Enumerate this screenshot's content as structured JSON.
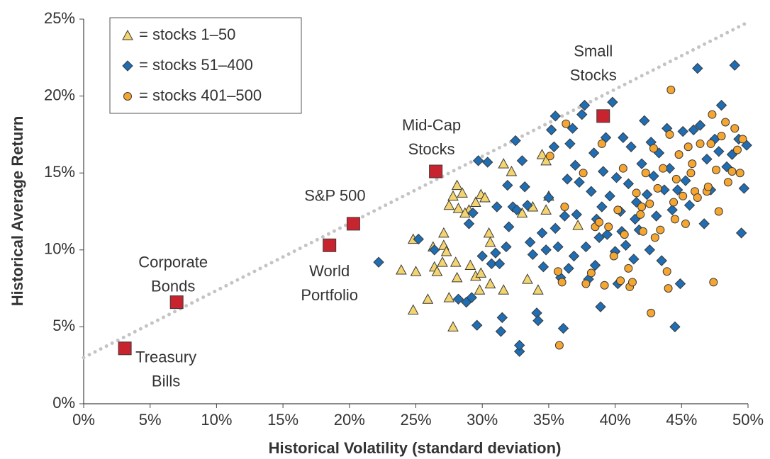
{
  "chart_data": {
    "type": "scatter",
    "x_label": "Historical Volatility (standard deviation)",
    "y_label": "Historical Average Return",
    "xlim": [
      0,
      50
    ],
    "ylim": [
      0,
      25
    ],
    "xticks": [
      {
        "value": 0,
        "label": "0%"
      },
      {
        "value": 5,
        "label": "5%"
      },
      {
        "value": 10,
        "label": "10%"
      },
      {
        "value": 15,
        "label": "15%"
      },
      {
        "value": 20,
        "label": "20%"
      },
      {
        "value": 25,
        "label": "25%"
      },
      {
        "value": 30,
        "label": "30%"
      },
      {
        "value": 35,
        "label": "35%"
      },
      {
        "value": 40,
        "label": "40%"
      },
      {
        "value": 45,
        "label": "45%"
      },
      {
        "value": 50,
        "label": "50%"
      }
    ],
    "yticks": [
      {
        "value": 0,
        "label": "0%"
      },
      {
        "value": 5,
        "label": "5%"
      },
      {
        "value": 10,
        "label": "10%"
      },
      {
        "value": 15,
        "label": "15%"
      },
      {
        "value": 20,
        "label": "20%"
      },
      {
        "value": 25,
        "label": "25%"
      }
    ],
    "legend": "upper left",
    "series": [
      {
        "name": "= stocks 1–50",
        "marker": "triangle",
        "color": "#f3d46e",
        "x": [
          24.8,
          25,
          23.9,
          24.8,
          25.9,
          26.4,
          26.3,
          26.6,
          27.1,
          27.1,
          27.3,
          27.5,
          27.8,
          27.5,
          27.8,
          28.1,
          28.2,
          28.5,
          28.0,
          28.1,
          29.0,
          29.1,
          29.5,
          29.9,
          30.2,
          30.5,
          30.6,
          29.5,
          29.9,
          29.8,
          30.6,
          31.6,
          31.6,
          32.2,
          33.0,
          33.8,
          33.4,
          34.2,
          34.5,
          34.8,
          35.0,
          34.8,
          37.2,
          28.7,
          27.0
        ],
        "values": [
          10.7,
          8.6,
          8.7,
          6.1,
          6.8,
          8.9,
          10.2,
          8.6,
          10.3,
          11.1,
          9.9,
          6.9,
          5.0,
          12.9,
          13.5,
          14.2,
          12.7,
          13.7,
          9.2,
          8.2,
          12.6,
          9.0,
          13.1,
          13.6,
          13.4,
          11.1,
          10.5,
          8.3,
          8.5,
          7.4,
          7.8,
          7.4,
          15.6,
          15.1,
          12.4,
          12.8,
          8.1,
          7.4,
          16.2,
          15.8,
          13.5,
          12.6,
          11.6,
          12.4,
          9.2
        ]
      },
      {
        "name": "= stocks 51–400",
        "marker": "diamond",
        "color": "#1f6db3",
        "x": [
          22.2,
          25.2,
          26.4,
          28.2,
          28.8,
          29.2,
          29.0,
          29.3,
          29.6,
          29.7,
          30.4,
          30.0,
          30.7,
          31.1,
          31.0,
          31.3,
          31.5,
          31.4,
          31.8,
          31.9,
          32.3,
          32.6,
          32.8,
          32.8,
          32.5,
          33.2,
          33.4,
          33.6,
          33.8,
          34.1,
          34.2,
          34.5,
          34.8,
          35.0,
          35.2,
          35.4,
          35.5,
          35.5,
          35.7,
          35.9,
          36.1,
          36.2,
          36.4,
          36.6,
          36.8,
          36.9,
          37.1,
          37.3,
          37.5,
          37.7,
          37.8,
          38.0,
          38.2,
          38.4,
          38.6,
          38.8,
          38.9,
          39.1,
          39.3,
          39.4,
          39.6,
          39.8,
          40.0,
          40.1,
          40.2,
          40.4,
          40.6,
          40.8,
          41.0,
          41.2,
          41.4,
          41.6,
          41.8,
          42.0,
          42.2,
          42.4,
          42.6,
          42.7,
          42.9,
          43.1,
          43.3,
          43.5,
          43.7,
          43.9,
          44.1,
          44.3,
          44.5,
          44.7,
          44.9,
          45.1,
          45.3,
          45.6,
          45.9,
          46.2,
          46.4,
          46.7,
          46.9,
          47.2,
          47.5,
          47.8,
          48.0,
          48.4,
          48.8,
          49.0,
          49.3,
          49.5,
          49.7,
          49.9,
          34.6,
          36.5,
          38.5,
          33.0,
          32.0,
          37.0,
          39.0,
          41.5,
          40.5
        ],
        "values": [
          9.2,
          10.7,
          10.0,
          6.8,
          6.6,
          6.9,
          11.7,
          12.4,
          5.1,
          15.8,
          15.7,
          9.6,
          9.1,
          12.8,
          9.8,
          9.1,
          5.6,
          4.7,
          10.2,
          14.2,
          12.8,
          12.6,
          3.4,
          3.8,
          17.1,
          14.1,
          12.9,
          10.5,
          9.7,
          5.9,
          5.4,
          11.1,
          10.0,
          13.4,
          17.8,
          16.7,
          18.7,
          11.4,
          10.2,
          8.2,
          4.9,
          12.2,
          14.6,
          16.9,
          17.9,
          9.6,
          12.3,
          14.4,
          18.8,
          19.4,
          10.2,
          8.1,
          13.8,
          16.3,
          12.0,
          10.8,
          6.3,
          15.1,
          17.3,
          11.0,
          13.5,
          19.6,
          9.9,
          14.7,
          7.8,
          12.5,
          17.3,
          10.3,
          14.3,
          16.7,
          9.4,
          13.1,
          11.3,
          15.6,
          18.4,
          13.6,
          10.0,
          17.0,
          14.8,
          12.2,
          16.3,
          9.3,
          13.9,
          17.9,
          15.3,
          12.6,
          5.0,
          13.9,
          7.8,
          17.7,
          14.5,
          12.9,
          17.8,
          21.8,
          18.1,
          11.7,
          15.9,
          13.9,
          17.2,
          16.4,
          19.4,
          15.4,
          16.2,
          22.0,
          17.2,
          11.1,
          14.0,
          16.8,
          8.9,
          8.8,
          9.0,
          15.8,
          11.5,
          15.5,
          12.8,
          12.0,
          11.2
        ]
      },
      {
        "name": "= stocks 401–500",
        "marker": "circle",
        "color": "#f5a631",
        "x": [
          35.8,
          35.7,
          36.0,
          36.3,
          35.1,
          36.2,
          37.8,
          38.2,
          38.5,
          38.8,
          39.2,
          39.5,
          39.9,
          40.2,
          40.4,
          40.7,
          41.0,
          41.1,
          41.3,
          41.6,
          41.9,
          42.1,
          42.3,
          42.6,
          42.7,
          42.9,
          43.2,
          43.4,
          43.6,
          43.9,
          44.0,
          44.1,
          44.2,
          44.4,
          44.6,
          44.8,
          45.1,
          45.3,
          45.5,
          45.7,
          46.0,
          46.2,
          46.4,
          46.9,
          47.0,
          47.2,
          47.3,
          47.4,
          47.6,
          47.8,
          48.0,
          48.3,
          48.5,
          48.8,
          49.0,
          49.2,
          49.4,
          49.6,
          37.6,
          39.0,
          40.6,
          42.0,
          43.0,
          44.5,
          45.8
        ],
        "values": [
          3.8,
          8.6,
          7.9,
          18.2,
          16.1,
          12.8,
          7.8,
          8.5,
          11.5,
          11.8,
          7.7,
          11.5,
          9.6,
          12.6,
          8.0,
          11.0,
          8.8,
          7.6,
          7.9,
          13.7,
          12.3,
          11.2,
          15.0,
          13.0,
          5.9,
          16.6,
          14.0,
          11.3,
          15.3,
          8.6,
          7.5,
          17.5,
          20.4,
          13.1,
          14.6,
          16.2,
          13.5,
          11.7,
          16.7,
          15.0,
          13.8,
          13.4,
          16.9,
          13.8,
          14.1,
          16.9,
          18.8,
          7.9,
          15.2,
          12.5,
          17.4,
          18.3,
          14.4,
          15.1,
          17.9,
          16.5,
          15.0,
          17.2,
          15.0,
          16.9,
          15.3,
          12.8,
          10.8,
          12.0,
          15.6
        ]
      }
    ],
    "reference_line": {
      "x": [
        0,
        50
      ],
      "y": [
        3.0,
        24.8
      ]
    },
    "points": [
      {
        "label_lines": [
          "Treasury",
          "Bills"
        ],
        "x": 3.1,
        "y": 3.6
      },
      {
        "label_lines": [
          "Corporate",
          "Bonds"
        ],
        "x": 7.0,
        "y": 6.6
      },
      {
        "label_lines": [
          "World",
          "Portfolio"
        ],
        "x": 18.5,
        "y": 10.3
      },
      {
        "label_lines": [
          "S&P 500"
        ],
        "x": 20.3,
        "y": 11.7
      },
      {
        "label_lines": [
          "Mid-Cap",
          "Stocks"
        ],
        "x": 26.5,
        "y": 15.1
      },
      {
        "label_lines": [
          "Small",
          "Stocks"
        ],
        "x": 39.1,
        "y": 18.7
      }
    ],
    "points_color": "#c8242f"
  }
}
